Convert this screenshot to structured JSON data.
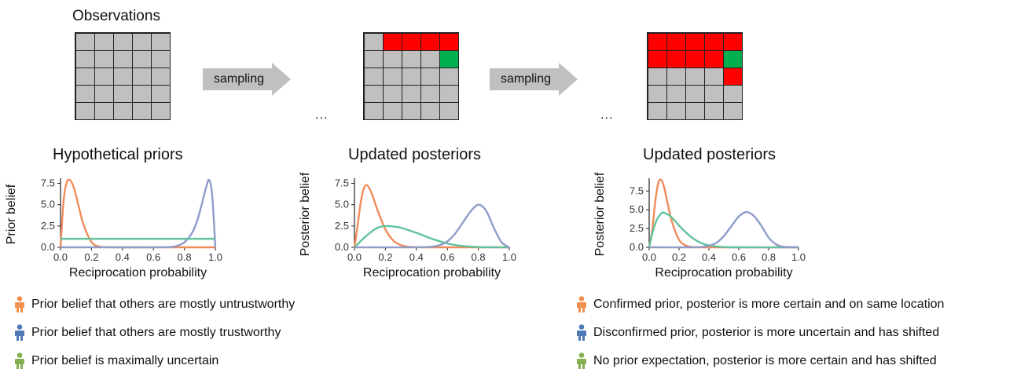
{
  "observations_title": "Observations",
  "arrow_label": "sampling",
  "ellipsis": "...",
  "colors": {
    "red": "#ff0000",
    "green": "#00b050",
    "gray": "#c0c0c0",
    "orange": "#f08c5a",
    "blue": "#8e9cc9",
    "teal": "#62c29e",
    "arrow": "#c0c0c0",
    "icon_orange": "#f0914f",
    "icon_blue": "#4e79b5",
    "icon_green": "#84b04e"
  },
  "grids": [
    {
      "red": [],
      "green": []
    },
    {
      "red": [
        1,
        2,
        3,
        4
      ],
      "green": [
        9
      ]
    },
    {
      "red": [
        0,
        1,
        2,
        3,
        4,
        5,
        6,
        7,
        8,
        14
      ],
      "green": [
        9
      ]
    }
  ],
  "legend_left": [
    {
      "icon": "person-orange-icon",
      "color": "icon_orange",
      "text": "Prior belief that others are mostly untrustworthy"
    },
    {
      "icon": "person-blue-icon",
      "color": "icon_blue",
      "text": "Prior belief that others are mostly trustworthy"
    },
    {
      "icon": "person-green-icon",
      "color": "icon_green",
      "text": "Prior belief is maximally uncertain"
    }
  ],
  "legend_right": [
    {
      "icon": "person-orange-icon",
      "color": "icon_orange",
      "text": "Confirmed prior, posterior is more certain and on same location"
    },
    {
      "icon": "person-blue-icon",
      "color": "icon_blue",
      "text": "Disconfirmed prior, posterior is more uncertain and has shifted"
    },
    {
      "icon": "person-green-icon",
      "color": "icon_green",
      "text": "No prior expectation, posterior is more certain and has shifted"
    }
  ],
  "chart_data": [
    {
      "type": "line",
      "title": "Hypothetical priors",
      "xlabel": "Reciprocation probability",
      "ylabel": "Prior belief",
      "xlim": [
        0,
        1
      ],
      "ylim": [
        0,
        8.1
      ],
      "xticks": [
        "0.0",
        "0.2",
        "0.4",
        "0.6",
        "0.8",
        "1.0"
      ],
      "yticks": [
        "0.0",
        "2.5",
        "5.0",
        "7.5"
      ],
      "grid": false,
      "series": [
        {
          "color": "orange",
          "x": [
            0,
            0.02,
            0.04,
            0.06,
            0.08,
            0.1,
            0.12,
            0.15,
            0.2,
            0.25,
            0.3,
            0.4,
            0.6,
            1.0
          ],
          "y": [
            0,
            5.5,
            7.6,
            7.9,
            7.3,
            6.1,
            4.6,
            2.6,
            0.6,
            0.1,
            0.02,
            0,
            0,
            0
          ]
        },
        {
          "color": "blue",
          "x": [
            0,
            0.5,
            0.6,
            0.7,
            0.75,
            0.8,
            0.85,
            0.88,
            0.9,
            0.92,
            0.94,
            0.96,
            0.98,
            1.0
          ],
          "y": [
            0,
            0,
            0,
            0.03,
            0.15,
            0.6,
            1.7,
            3.0,
            4.2,
            5.6,
            7.0,
            7.9,
            6.0,
            0
          ]
        },
        {
          "color": "teal",
          "x": [
            0,
            1
          ],
          "y": [
            1,
            1
          ]
        }
      ]
    },
    {
      "type": "line",
      "title": "Updated posteriors",
      "xlabel": "Reciprocation probability",
      "ylabel": "Posterior belief",
      "xlim": [
        0,
        1
      ],
      "ylim": [
        0,
        8.1
      ],
      "xticks": [
        "0.0",
        "0.2",
        "0.4",
        "0.6",
        "0.8",
        "1.0"
      ],
      "yticks": [
        "0.0",
        "2.5",
        "5.0",
        "7.5"
      ],
      "grid": false,
      "series": [
        {
          "color": "orange",
          "x": [
            0,
            0.02,
            0.04,
            0.06,
            0.08,
            0.1,
            0.12,
            0.15,
            0.2,
            0.25,
            0.3,
            0.35,
            0.4,
            0.5,
            1.0
          ],
          "y": [
            0,
            2.5,
            5.2,
            6.9,
            7.3,
            6.8,
            5.9,
            4.3,
            2.1,
            0.8,
            0.25,
            0.06,
            0.01,
            0,
            0
          ]
        },
        {
          "color": "teal",
          "x": [
            0,
            0.05,
            0.1,
            0.15,
            0.2,
            0.25,
            0.3,
            0.35,
            0.4,
            0.45,
            0.5,
            0.6,
            0.7,
            0.8,
            0.9,
            1.0
          ],
          "y": [
            0,
            0.9,
            1.7,
            2.3,
            2.5,
            2.45,
            2.3,
            2.0,
            1.7,
            1.35,
            1.0,
            0.45,
            0.15,
            0.03,
            0,
            0
          ]
        },
        {
          "color": "blue",
          "x": [
            0,
            0.4,
            0.5,
            0.55,
            0.6,
            0.65,
            0.7,
            0.75,
            0.8,
            0.85,
            0.9,
            0.95,
            1.0
          ],
          "y": [
            0,
            0,
            0.07,
            0.25,
            0.7,
            1.6,
            2.9,
            4.2,
            5.0,
            4.3,
            2.3,
            0.6,
            0
          ]
        }
      ]
    },
    {
      "type": "line",
      "title": "Updated posteriors",
      "xlabel": "Reciprocation probability",
      "ylabel": "Posterior belief",
      "xlim": [
        0,
        1
      ],
      "ylim": [
        0,
        9.2
      ],
      "xticks": [
        "0.0",
        "0.2",
        "0.4",
        "0.6",
        "0.8",
        "1.0"
      ],
      "yticks": [
        "0.0",
        "2.5",
        "5.0",
        "7.5"
      ],
      "grid": false,
      "series": [
        {
          "color": "orange",
          "x": [
            0,
            0.02,
            0.04,
            0.06,
            0.08,
            0.1,
            0.12,
            0.15,
            0.2,
            0.25,
            0.3,
            0.35,
            1.0
          ],
          "y": [
            0,
            2.2,
            6.0,
            8.5,
            9.0,
            8.0,
            6.2,
            3.6,
            1.0,
            0.2,
            0.03,
            0,
            0
          ]
        },
        {
          "color": "teal",
          "x": [
            0,
            0.02,
            0.05,
            0.08,
            0.1,
            0.15,
            0.2,
            0.25,
            0.3,
            0.35,
            0.4,
            0.5,
            0.6,
            1.0
          ],
          "y": [
            0,
            1.8,
            3.6,
            4.5,
            4.6,
            4.0,
            2.9,
            1.9,
            1.1,
            0.55,
            0.25,
            0.03,
            0,
            0
          ]
        },
        {
          "color": "blue",
          "x": [
            0,
            0.3,
            0.35,
            0.4,
            0.45,
            0.5,
            0.55,
            0.6,
            0.65,
            0.7,
            0.75,
            0.8,
            0.85,
            0.9,
            1.0
          ],
          "y": [
            0,
            0,
            0.05,
            0.2,
            0.6,
            1.5,
            2.8,
            4.1,
            4.7,
            4.2,
            2.9,
            1.3,
            0.4,
            0.07,
            0
          ]
        }
      ]
    }
  ]
}
